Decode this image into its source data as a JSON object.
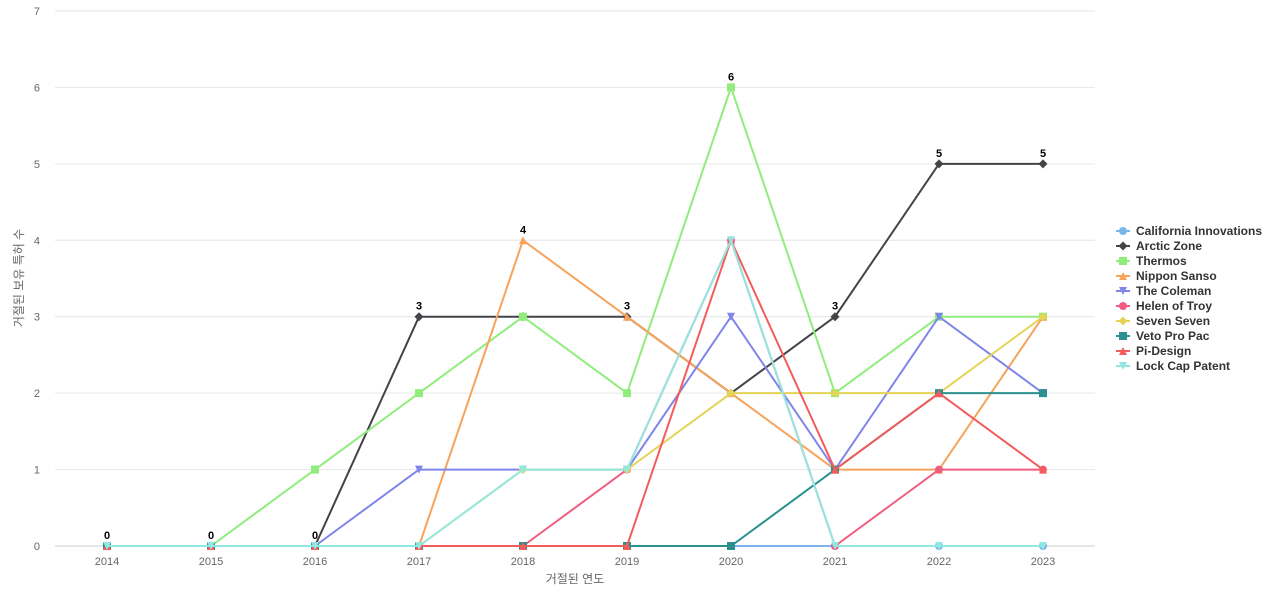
{
  "chart_data": {
    "type": "line",
    "xlabel": "거절된 연도",
    "ylabel": "거절된 보유 특허 수",
    "ylim": [
      0,
      7
    ],
    "yticks": [
      0,
      1,
      2,
      3,
      4,
      5,
      6,
      7
    ],
    "grid": "horizontal",
    "legend_position": "right",
    "categories": [
      "2014",
      "2015",
      "2016",
      "2017",
      "2018",
      "2019",
      "2020",
      "2021",
      "2022",
      "2023"
    ],
    "data_labels": [
      "0",
      "0",
      "0",
      "3",
      "4",
      "3",
      "6",
      "3",
      "5",
      "5"
    ],
    "series": [
      {
        "name": "California Innovations",
        "color": "#7cb5ec",
        "marker": "circle",
        "values": [
          0,
          0,
          0,
          0,
          0,
          0,
          0,
          0,
          0,
          0
        ]
      },
      {
        "name": "Arctic Zone",
        "color": "#434348",
        "marker": "diamond",
        "values": [
          0,
          0,
          0,
          3,
          3,
          3,
          2,
          3,
          5,
          5
        ]
      },
      {
        "name": "Thermos",
        "color": "#90ed7d",
        "marker": "square",
        "values": [
          0,
          0,
          1,
          2,
          3,
          2,
          6,
          2,
          3,
          3
        ]
      },
      {
        "name": "Nippon Sanso",
        "color": "#f7a35c",
        "marker": "triangle",
        "values": [
          0,
          0,
          0,
          0,
          4,
          3,
          2,
          1,
          1,
          3
        ]
      },
      {
        "name": "The Coleman",
        "color": "#8085e9",
        "marker": "triangle-down",
        "values": [
          0,
          0,
          0,
          1,
          1,
          1,
          3,
          1,
          3,
          2
        ]
      },
      {
        "name": "Helen of Troy",
        "color": "#f15c80",
        "marker": "circle",
        "values": [
          0,
          0,
          0,
          0,
          0,
          1,
          4,
          0,
          1,
          1
        ]
      },
      {
        "name": "Seven Seven",
        "color": "#e4d354",
        "marker": "diamond",
        "values": [
          0,
          0,
          0,
          0,
          1,
          1,
          2,
          2,
          2,
          3
        ]
      },
      {
        "name": "Veto Pro Pac",
        "color": "#2b908f",
        "marker": "square",
        "values": [
          0,
          0,
          0,
          0,
          0,
          0,
          0,
          1,
          2,
          2
        ]
      },
      {
        "name": "Pi-Design",
        "color": "#f45b5b",
        "marker": "triangle",
        "values": [
          0,
          0,
          0,
          0,
          0,
          0,
          4,
          1,
          2,
          1
        ]
      },
      {
        "name": "Lock Cap Patent",
        "color": "#91e8e1",
        "marker": "triangle-down",
        "values": [
          0,
          0,
          0,
          0,
          1,
          1,
          4,
          0,
          0,
          0
        ]
      }
    ]
  }
}
